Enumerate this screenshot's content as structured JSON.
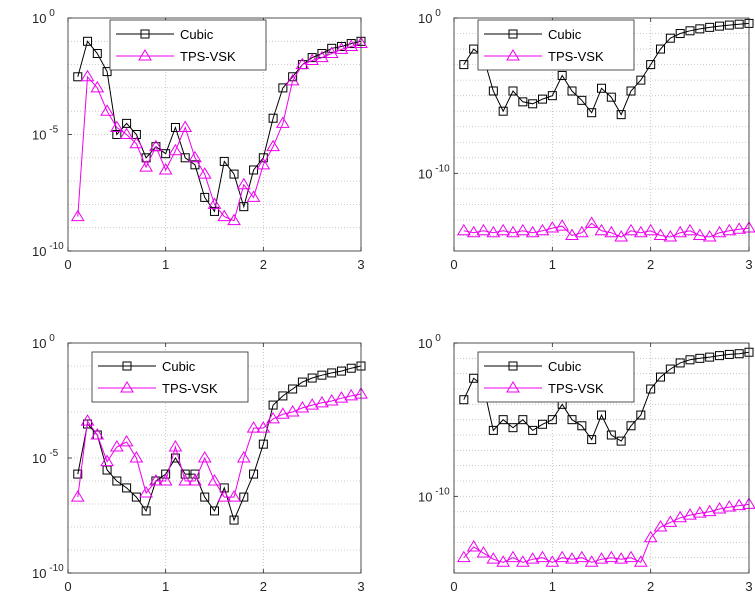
{
  "chart_data": [
    {
      "type": "line",
      "x": [
        0.1,
        0.2,
        0.3,
        0.4,
        0.5,
        0.6,
        0.7,
        0.8,
        0.9,
        1.0,
        1.1,
        1.2,
        1.3,
        1.4,
        1.5,
        1.6,
        1.7,
        1.8,
        1.9,
        2.0,
        2.1,
        2.2,
        2.3,
        2.4,
        2.5,
        2.6,
        2.7,
        2.8,
        2.9,
        3.0
      ],
      "xlim": [
        0,
        3
      ],
      "ylim": [
        1e-10,
        1
      ],
      "yscale": "log",
      "xticks": [
        "0",
        "1",
        "2",
        "3"
      ],
      "yticks": [
        {
          "base": "10",
          "exp": "0"
        },
        {
          "base": "10",
          "exp": "-5"
        },
        {
          "base": "10",
          "exp": "-10"
        }
      ],
      "grid": true,
      "legend": "top-center",
      "series": [
        {
          "name": "Cubic",
          "color": "#000000",
          "marker": "square",
          "values": [
            0.003,
            0.1,
            0.03,
            0.005,
            1e-05,
            3e-05,
            1e-05,
            1e-06,
            3e-06,
            1.5e-06,
            2e-05,
            1e-06,
            5e-07,
            2e-08,
            5e-09,
            7e-07,
            2e-07,
            8e-09,
            3e-07,
            1e-06,
            5e-05,
            0.001,
            0.003,
            0.01,
            0.02,
            0.03,
            0.05,
            0.06,
            0.08,
            0.1
          ]
        },
        {
          "name": "TPS-VSK",
          "color": "#ee00ee",
          "marker": "triangle",
          "values": [
            3e-09,
            0.003,
            0.001,
            0.0001,
            2e-05,
            1e-05,
            4e-06,
            4e-07,
            3e-06,
            3e-07,
            2e-06,
            2e-05,
            1e-06,
            2e-07,
            1e-08,
            3e-09,
            2e-09,
            7e-08,
            2e-08,
            5e-07,
            3e-06,
            3e-05,
            0.002,
            0.01,
            0.015,
            0.02,
            0.03,
            0.045,
            0.06,
            0.08
          ]
        }
      ]
    },
    {
      "type": "line",
      "x": [
        0.1,
        0.2,
        0.3,
        0.4,
        0.5,
        0.6,
        0.7,
        0.8,
        0.9,
        1.0,
        1.1,
        1.2,
        1.3,
        1.4,
        1.5,
        1.6,
        1.7,
        1.8,
        1.9,
        2.0,
        2.1,
        2.2,
        2.3,
        2.4,
        2.5,
        2.6,
        2.7,
        2.8,
        2.9,
        3.0
      ],
      "xlim": [
        0,
        3
      ],
      "ylim": [
        1e-15,
        1
      ],
      "yscale": "log",
      "xticks": [
        "0",
        "1",
        "2",
        "3"
      ],
      "yticks": [
        {
          "base": "10",
          "exp": "0"
        },
        {
          "base": "10",
          "exp": "-10"
        }
      ],
      "grid": true,
      "legend": "top-center",
      "series": [
        {
          "name": "Cubic",
          "color": "#000000",
          "marker": "square",
          "values": [
            0.001,
            0.01,
            0.003,
            2e-05,
            1e-06,
            2e-05,
            4e-06,
            3e-06,
            6e-06,
            1e-05,
            0.0002,
            2e-05,
            5e-06,
            8e-07,
            3e-05,
            8e-06,
            6e-07,
            2e-05,
            0.0001,
            0.001,
            0.01,
            0.05,
            0.1,
            0.15,
            0.2,
            0.25,
            0.3,
            0.35,
            0.4,
            0.45
          ]
        },
        {
          "name": "TPS-VSK",
          "color": "#ee00ee",
          "marker": "triangle",
          "values": [
            2e-14,
            1.5e-14,
            2e-14,
            1.5e-14,
            2e-14,
            1.5e-14,
            2e-14,
            1.5e-14,
            2e-14,
            3e-14,
            4e-14,
            1e-14,
            1.5e-14,
            6e-14,
            2e-14,
            1.5e-14,
            8e-15,
            2e-14,
            1.5e-14,
            2e-14,
            1e-14,
            8e-15,
            1.5e-14,
            2e-14,
            1e-14,
            8e-15,
            1.5e-14,
            2e-14,
            2.5e-14,
            3e-14
          ]
        }
      ]
    },
    {
      "type": "line",
      "x": [
        0.1,
        0.2,
        0.3,
        0.4,
        0.5,
        0.6,
        0.7,
        0.8,
        0.9,
        1.0,
        1.1,
        1.2,
        1.3,
        1.4,
        1.5,
        1.6,
        1.7,
        1.8,
        1.9,
        2.0,
        2.1,
        2.2,
        2.3,
        2.4,
        2.5,
        2.6,
        2.7,
        2.8,
        2.9,
        3.0
      ],
      "xlim": [
        0,
        3
      ],
      "ylim": [
        1e-10,
        1
      ],
      "yscale": "log",
      "xticks": [
        "0",
        "1",
        "2",
        "3"
      ],
      "yticks": [
        {
          "base": "10",
          "exp": "0"
        },
        {
          "base": "10",
          "exp": "-5"
        },
        {
          "base": "10",
          "exp": "-10"
        }
      ],
      "grid": true,
      "legend": "top-center",
      "series": [
        {
          "name": "Cubic",
          "color": "#000000",
          "marker": "square",
          "values": [
            2e-06,
            0.0003,
            0.0001,
            3e-06,
            1e-06,
            5e-07,
            2e-07,
            5e-08,
            1e-06,
            2e-06,
            1e-05,
            2e-06,
            2e-06,
            2e-07,
            5e-08,
            5e-07,
            2e-08,
            2e-07,
            2e-06,
            4e-05,
            0.002,
            0.005,
            0.01,
            0.02,
            0.03,
            0.04,
            0.05,
            0.06,
            0.08,
            0.1
          ]
        },
        {
          "name": "TPS-VSK",
          "color": "#ee00ee",
          "marker": "triangle",
          "values": [
            2e-07,
            0.0004,
            0.0001,
            7e-06,
            3e-05,
            5e-05,
            1e-05,
            3e-07,
            1e-06,
            1e-06,
            3e-05,
            1e-06,
            1e-06,
            1e-05,
            1e-06,
            2e-07,
            2e-07,
            1e-05,
            0.0002,
            0.0002,
            0.0005,
            0.0008,
            0.001,
            0.0015,
            0.002,
            0.0025,
            0.003,
            0.004,
            0.005,
            0.006
          ]
        }
      ]
    },
    {
      "type": "line",
      "x": [
        0.1,
        0.2,
        0.3,
        0.4,
        0.5,
        0.6,
        0.7,
        0.8,
        0.9,
        1.0,
        1.1,
        1.2,
        1.3,
        1.4,
        1.5,
        1.6,
        1.7,
        1.8,
        1.9,
        2.0,
        2.1,
        2.2,
        2.3,
        2.4,
        2.5,
        2.6,
        2.7,
        2.8,
        2.9,
        3.0
      ],
      "xlim": [
        0,
        3
      ],
      "ylim": [
        1e-15,
        1
      ],
      "yscale": "log",
      "xticks": [
        "0",
        "1",
        "2",
        "3"
      ],
      "yticks": [
        {
          "base": "10",
          "exp": "0"
        },
        {
          "base": "10",
          "exp": "-10"
        }
      ],
      "grid": true,
      "legend": "top-center",
      "series": [
        {
          "name": "Cubic",
          "color": "#000000",
          "marker": "square",
          "values": [
            0.0002,
            0.005,
            0.0015,
            2e-06,
            1e-05,
            3e-06,
            1e-05,
            2e-06,
            5e-06,
            1e-05,
            0.0001,
            1e-05,
            4e-06,
            5e-07,
            2e-05,
            1e-06,
            4e-07,
            4e-06,
            2e-05,
            0.001,
            0.006,
            0.02,
            0.05,
            0.08,
            0.1,
            0.12,
            0.15,
            0.18,
            0.2,
            0.25
          ]
        },
        {
          "name": "TPS-VSK",
          "color": "#ee00ee",
          "marker": "triangle",
          "values": [
            1e-14,
            5e-14,
            2e-14,
            8e-15,
            5e-15,
            1e-14,
            5e-15,
            8e-15,
            1e-14,
            5e-15,
            1e-14,
            8e-15,
            1e-14,
            5e-15,
            8e-15,
            1e-14,
            8e-15,
            1e-14,
            5e-15,
            2e-13,
            1e-12,
            2e-12,
            4e-12,
            6e-12,
            8e-12,
            1e-11,
            1.5e-11,
            2e-11,
            2.5e-11,
            3e-11
          ]
        }
      ]
    }
  ]
}
